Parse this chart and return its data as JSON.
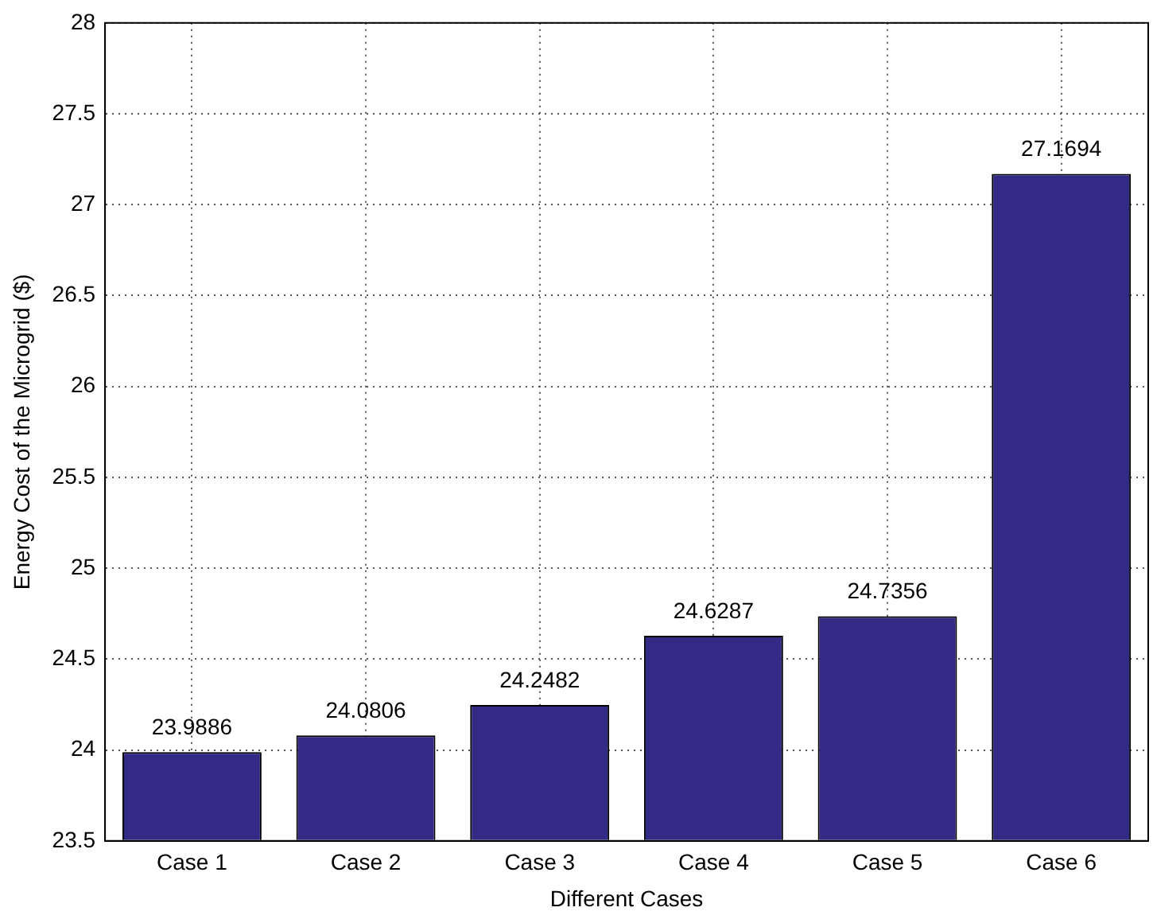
{
  "chart_data": {
    "type": "bar",
    "xlabel": "Different Cases",
    "ylabel": "Energy Cost of the Microgrid ($)",
    "categories": [
      "Case 1",
      "Case 2",
      "Case 3",
      "Case 4",
      "Case 5",
      "Case 6"
    ],
    "values": [
      23.9886,
      24.0806,
      24.2482,
      24.6287,
      24.7356,
      27.1694
    ],
    "color": "#332a86",
    "ylim": [
      23.5,
      28
    ],
    "yticks": [
      23.5,
      24,
      24.5,
      25,
      25.5,
      26,
      26.5,
      27,
      27.5,
      28
    ],
    "grid": true,
    "data_labels": true
  }
}
